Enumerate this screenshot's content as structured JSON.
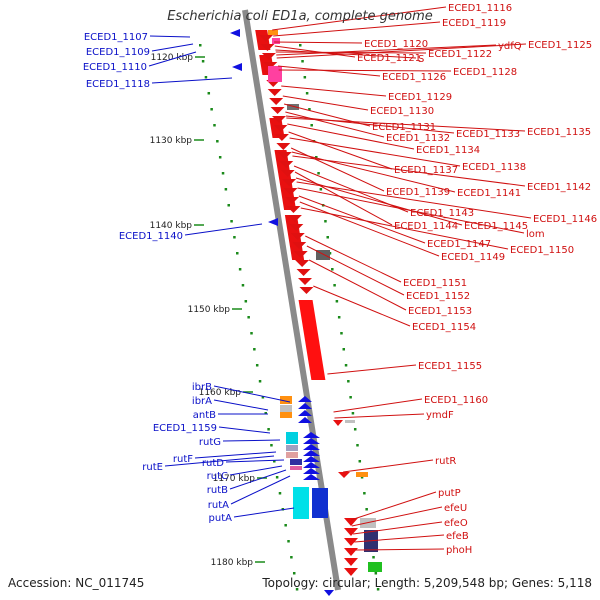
{
  "title": "Escherichia coli ED1a, complete genome",
  "footer": {
    "accession": "Accession: NC_011745",
    "summary": "Topology: circular; Length: 5,209,548 bp; Genes: 5,118"
  },
  "colors": {
    "forward_label": "#0a10c8",
    "reverse_label": "#d01010",
    "backbone": "#8a8a8a",
    "tick": "#1a8a1a",
    "scale_text": "#222222"
  },
  "scale_ticks": [
    "1120 kbp",
    "1130 kbp",
    "1140 kbp",
    "1150 kbp",
    "1160 kbp",
    "1170 kbp",
    "1180 kbp"
  ],
  "left_labels": [
    "ECED1_1107",
    "ECED1_1109",
    "ECED1_1110",
    "ECED1_1118",
    "ECED1_1140",
    "ibrB",
    "ibrA",
    "antB",
    "ECED1_1159",
    "rutG",
    "rutF",
    "rutE",
    "rutD",
    "rutC",
    "rutB",
    "rutA",
    "putA"
  ],
  "right_labels": [
    "ECED1_1116",
    "ECED1_1119",
    "ECED1_1120",
    "ECED1_1121",
    "S",
    "ECED1_1122",
    "ydfQ",
    "ECED1_1125",
    "ECED1_1126",
    "ECED1_1128",
    "ECED1_1129",
    "ECED1_1130",
    "ECED1_1131",
    "ECED1_1132",
    "ECED1_1133",
    "ECED1_1135",
    "ECED1_1134",
    "ECED1_1137",
    "ECED1_1138",
    "ECED1_1139",
    "ECED1_1141",
    "ECED1_1142",
    "ECED1_1143",
    "ECED1_1144",
    "ECED1_1145",
    "ECED1_1146",
    "lom",
    "ECED1_1147",
    "ECED1_1149",
    "ECED1_1150",
    "ECED1_1151",
    "ECED1_1152",
    "ECED1_1153",
    "ECED1_1154",
    "ECED1_1155",
    "ECED1_1160",
    "ymdF",
    "rutR",
    "putP",
    "efeU",
    "efeO",
    "efeB",
    "phoH"
  ]
}
